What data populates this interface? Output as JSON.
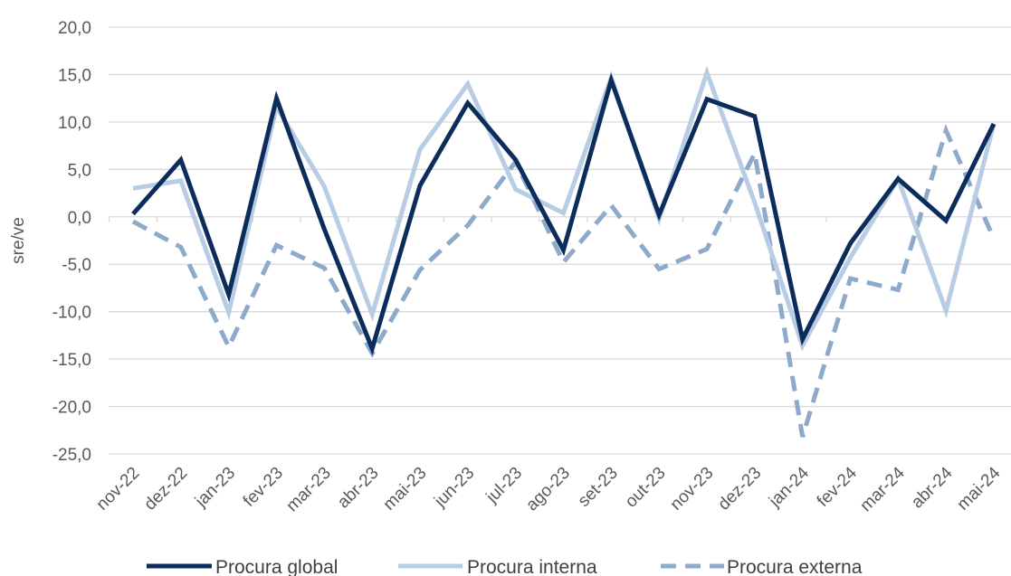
{
  "chart_data": {
    "type": "line",
    "title": "",
    "xlabel": "",
    "ylabel": "sre/ve",
    "ylim": [
      -25,
      20
    ],
    "ytick_step": 5,
    "ytick_labels": [
      "20,0",
      "15,0",
      "10,0",
      "5,0",
      "0,0",
      "-5,0",
      "-10,0",
      "-15,0",
      "-20,0",
      "-25,0"
    ],
    "grid": true,
    "legend_position": "bottom",
    "categories": [
      "nov-22",
      "dez-22",
      "jan-23",
      "fev-23",
      "mar-23",
      "abr-23",
      "mai-23",
      "jun-23",
      "jul-23",
      "ago-23",
      "set-23",
      "out-23",
      "nov-23",
      "dez-23",
      "jan-24",
      "fev-24",
      "mar-24",
      "abr-24",
      "mai-24"
    ],
    "series": [
      {
        "name": "Procura global",
        "color": "#0c2d5c",
        "style": "solid",
        "values": [
          0.3,
          6.0,
          -8.2,
          12.5,
          -1.3,
          -13.9,
          3.3,
          12.0,
          6.0,
          -3.5,
          14.4,
          0.2,
          12.4,
          10.6,
          -12.9,
          -2.8,
          4.0,
          -0.4,
          9.8
        ]
      },
      {
        "name": "Procura interna",
        "color": "#b8cce4",
        "style": "solid",
        "values": [
          3.0,
          3.8,
          -10.1,
          11.6,
          3.2,
          -10.3,
          7.1,
          14.0,
          2.9,
          0.4,
          14.7,
          -0.2,
          15.2,
          1.5,
          -13.6,
          -4.3,
          4.0,
          -9.9,
          9.8
        ]
      },
      {
        "name": "Procura externa",
        "color": "#8eaacb",
        "style": "dashed",
        "values": [
          -0.5,
          -3.2,
          -13.7,
          -3.0,
          -5.4,
          -14.4,
          -5.6,
          -0.9,
          5.8,
          -4.8,
          1.2,
          -5.5,
          -3.4,
          6.7,
          -23.2,
          -6.5,
          -7.7,
          9.1,
          -2.3
        ]
      }
    ]
  }
}
